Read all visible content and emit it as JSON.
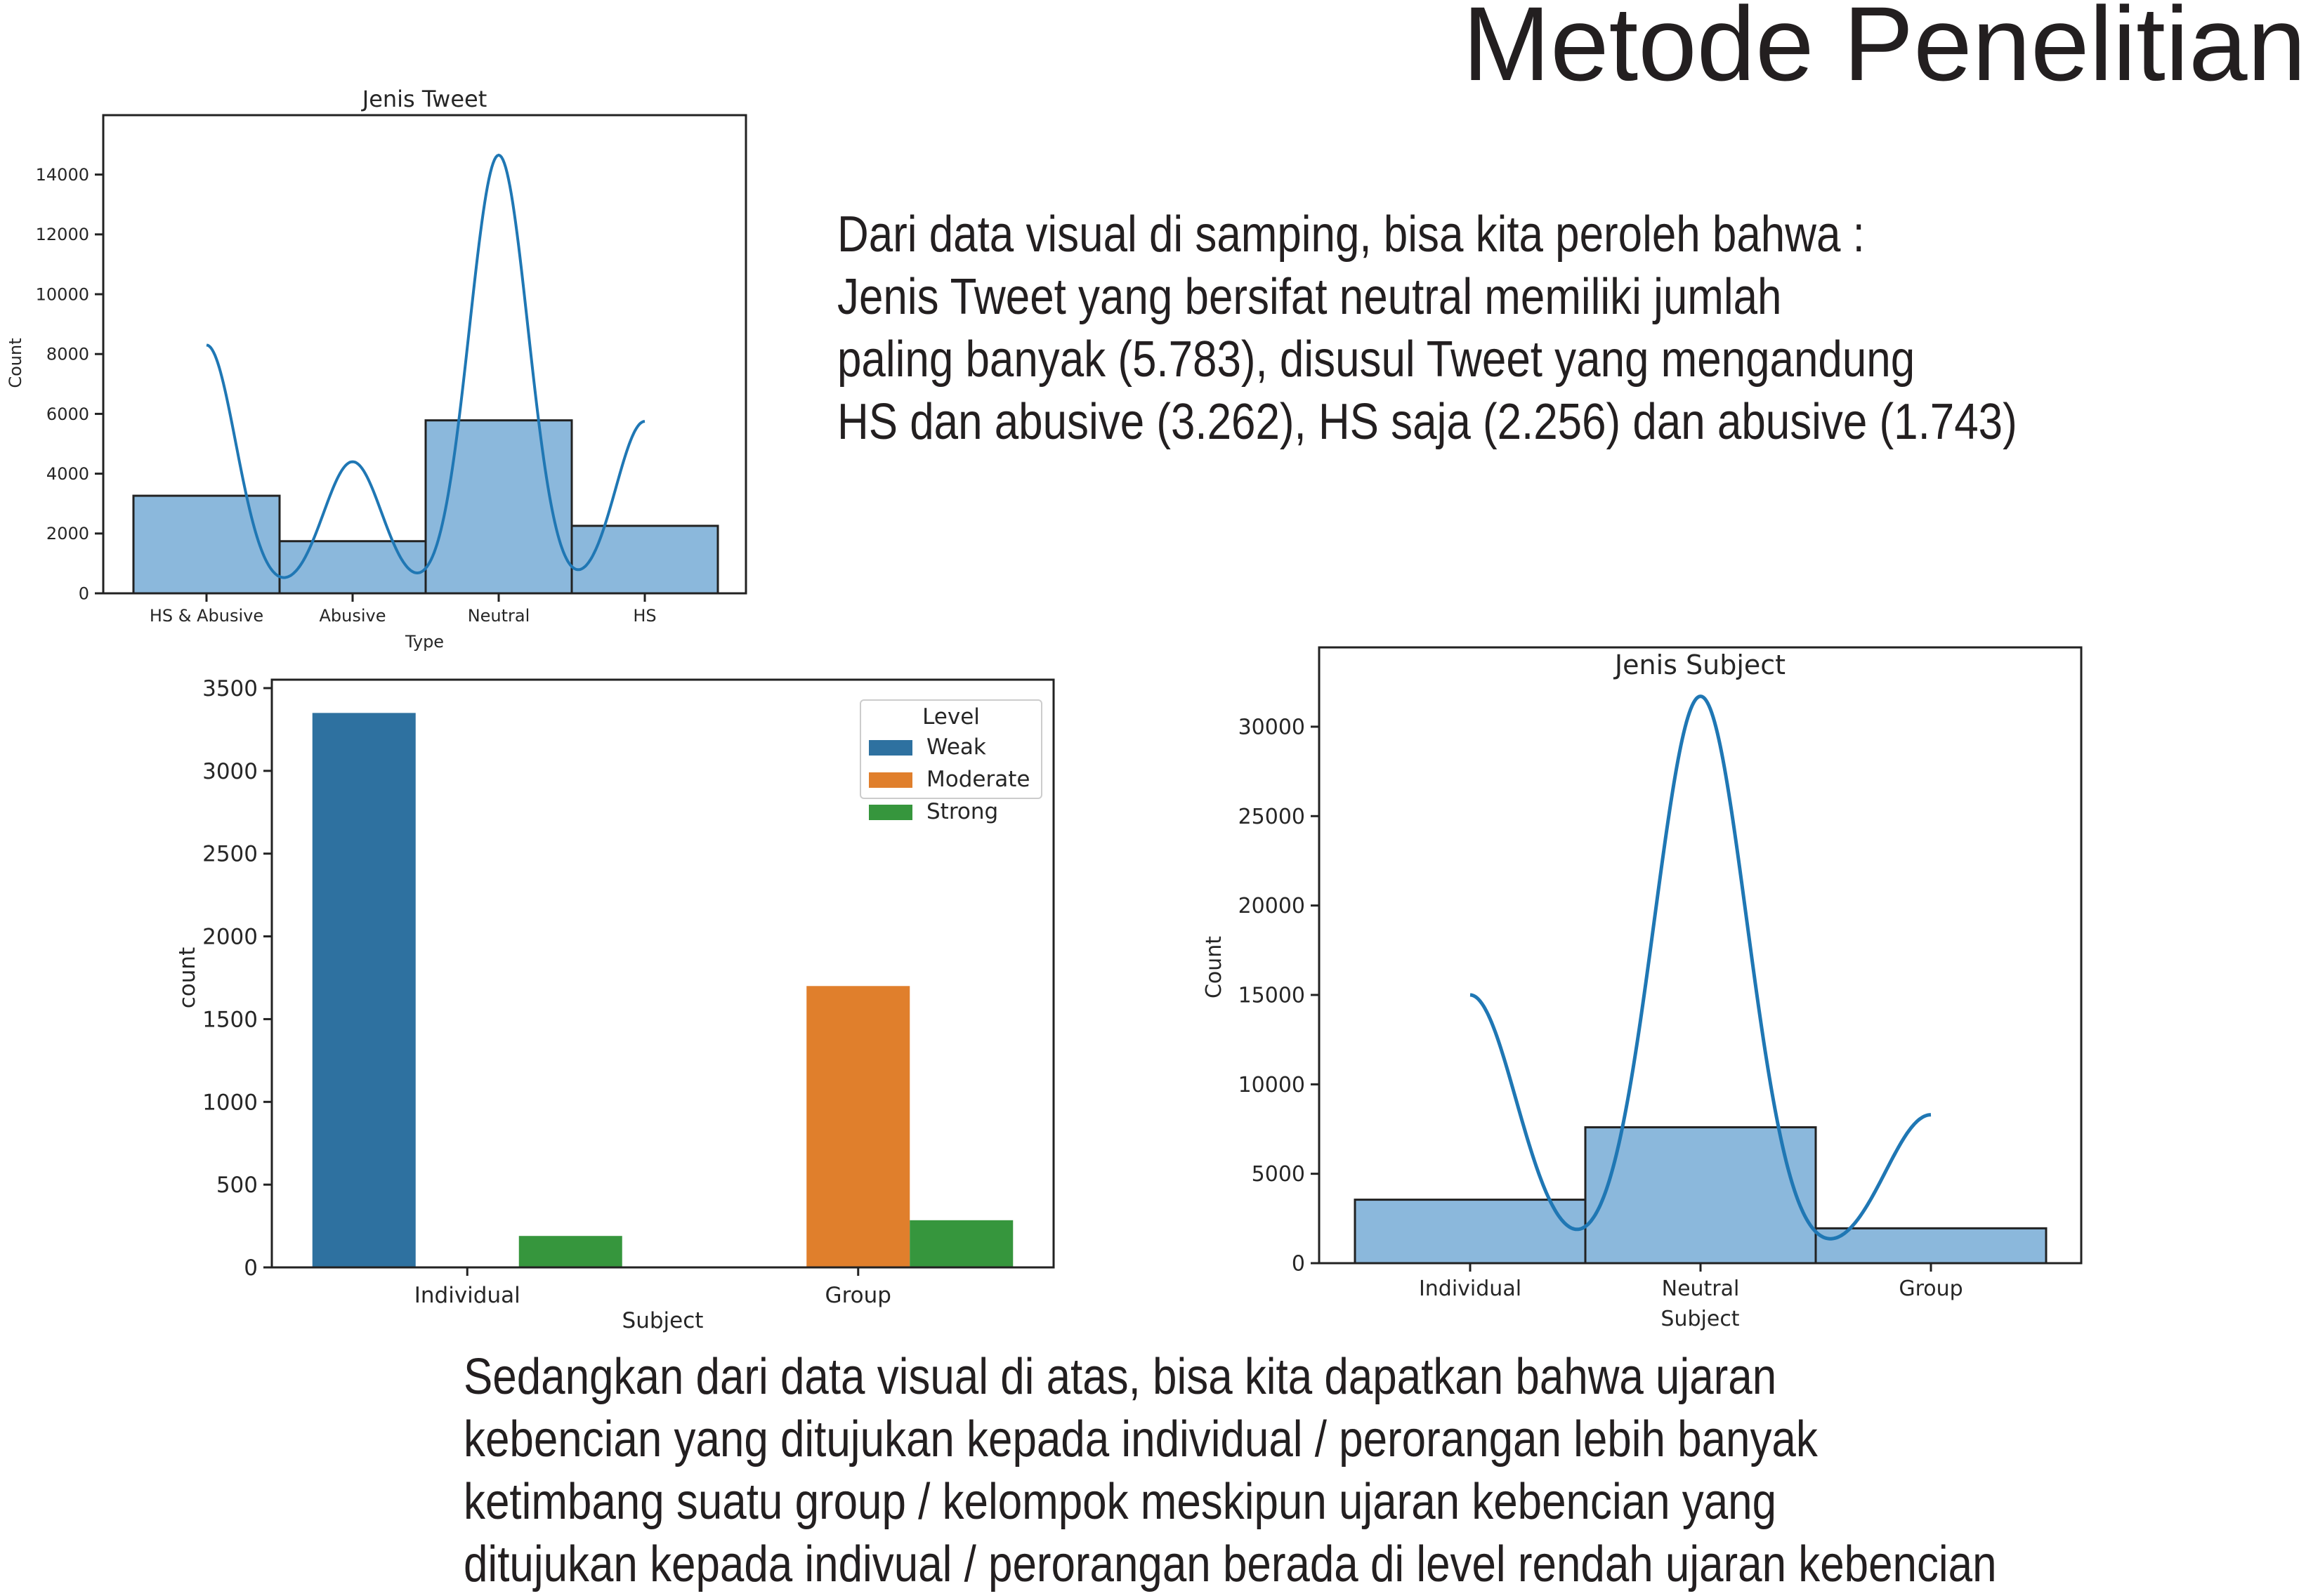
{
  "slide": {
    "title": "Metode Penelitian",
    "paragraph1": [
      "Dari data visual di samping, bisa kita peroleh bahwa :",
      "Jenis Tweet yang bersifat neutral memiliki jumlah",
      "paling banyak (5.783), disusul Tweet yang mengandung",
      "HS dan abusive (3.262), HS saja (2.256) dan abusive (1.743)"
    ],
    "paragraph2": [
      "Sedangkan dari data visual di atas, bisa kita dapatkan bahwa ujaran",
      "kebencian yang ditujukan kepada individual / perorangan lebih banyak",
      "ketimbang suatu group / kelompok meskipun ujaran kebencian yang",
      "ditujukan kepada indivual / perorangan berada di level rendah ujaran kebencian"
    ]
  },
  "chart_data": [
    {
      "type": "bar",
      "title": "Jenis Tweet",
      "xlabel": "Type",
      "ylabel": "Count",
      "categories": [
        "HS & Abusive",
        "Abusive",
        "Neutral",
        "HS"
      ],
      "values": [
        3262,
        1743,
        5783,
        2256
      ],
      "kde_peaks": [
        8300,
        4400,
        14650,
        5750
      ],
      "ylim": [
        0,
        15400
      ],
      "yticks": [
        0,
        2000,
        4000,
        6000,
        8000,
        10000,
        12000,
        14000
      ],
      "bar_color": "#8bb8dc",
      "line_color": "#1f77b4",
      "grid": false
    },
    {
      "type": "bar",
      "title": "",
      "xlabel": "Subject",
      "ylabel": "count",
      "categories": [
        "Individual",
        "Group"
      ],
      "legend": {
        "title": "Level",
        "position": "top-right"
      },
      "series": [
        {
          "name": "Weak",
          "color": "#2e71a0",
          "values": [
            3350,
            0
          ]
        },
        {
          "name": "Moderate",
          "color": "#e07f2c",
          "values": [
            0,
            1700
          ]
        },
        {
          "name": "Strong",
          "color": "#36963d",
          "values": [
            190,
            285
          ]
        }
      ],
      "ylim": [
        0,
        3500
      ],
      "yticks": [
        0,
        500,
        1000,
        1500,
        2000,
        2500,
        3000,
        3500
      ],
      "grid": false
    },
    {
      "type": "bar",
      "title": "Jenis Subject",
      "xlabel": "Subject",
      "ylabel": "Count",
      "categories": [
        "Individual",
        "Neutral",
        "Group"
      ],
      "values": [
        3550,
        7600,
        1950
      ],
      "kde_peaks": [
        15000,
        31700,
        8300
      ],
      "ylim": [
        0,
        33100
      ],
      "yticks": [
        0,
        5000,
        10000,
        15000,
        20000,
        25000,
        30000
      ],
      "bar_color": "#8bb8dc",
      "line_color": "#1f77b4",
      "grid": false
    }
  ]
}
